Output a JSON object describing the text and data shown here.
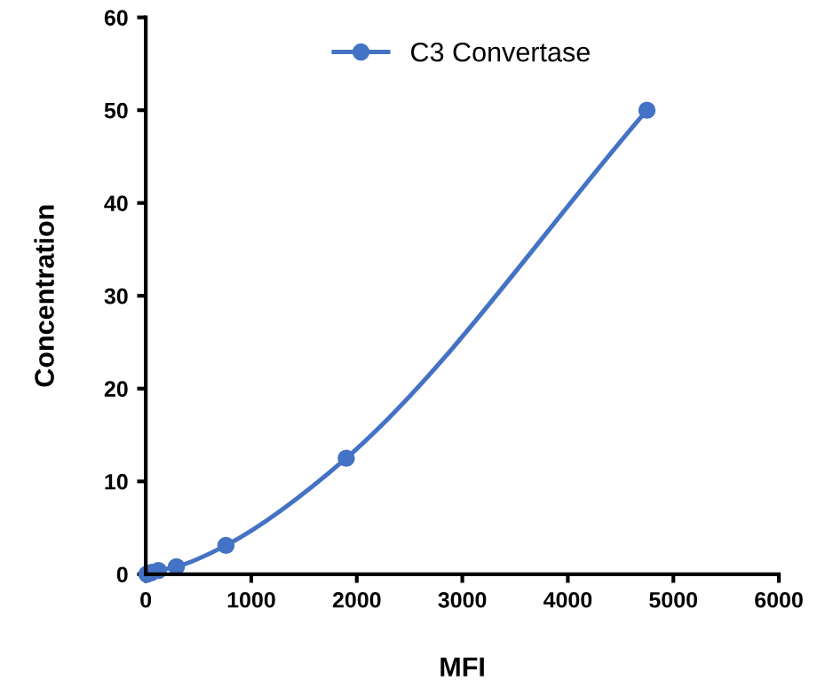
{
  "chart_data": {
    "type": "line",
    "xlabel": "MFI",
    "ylabel": "Concentration",
    "series": [
      {
        "name": "C3 Convertase",
        "color": "#4472c4",
        "x": [
          10,
          30,
          60,
          120,
          290,
          760,
          1900,
          4750
        ],
        "values": [
          0,
          0.1,
          0.2,
          0.4,
          0.8,
          3.1,
          12.5,
          50
        ]
      }
    ],
    "xlim": [
      0,
      6000
    ],
    "xticks": [
      0,
      1000,
      2000,
      3000,
      4000,
      5000,
      6000
    ],
    "ylim": [
      0,
      60
    ],
    "yticks": [
      0,
      10,
      20,
      30,
      40,
      50,
      60
    ],
    "grid": false,
    "legend": "top",
    "marker": "circle",
    "line_style": "solid"
  }
}
